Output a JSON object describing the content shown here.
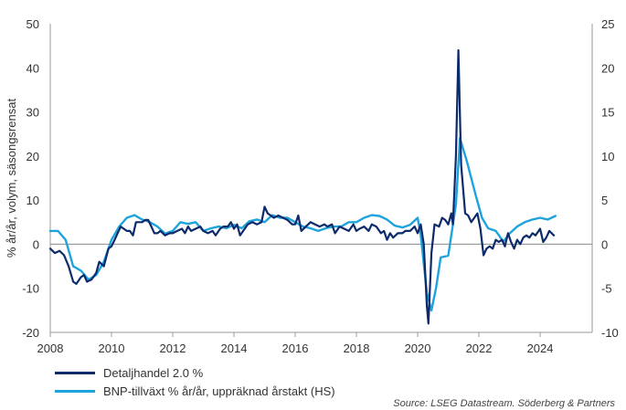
{
  "chart_data": {
    "type": "line",
    "ylabel": "% år/år, volym, säsongsrensat",
    "xlabel": "",
    "x_ticks": [
      "2008",
      "2010",
      "2012",
      "2014",
      "2016",
      "2018",
      "2020",
      "2022",
      "2024"
    ],
    "xlim": [
      2008,
      2025.7
    ],
    "ylim_left": [
      -20,
      50
    ],
    "yticks_left": [
      -20,
      -10,
      0,
      10,
      20,
      30,
      40,
      50
    ],
    "ylim_right": [
      -10,
      25
    ],
    "yticks_right": [
      -10,
      -5,
      0,
      5,
      10,
      15,
      20,
      25
    ],
    "zero_line": true,
    "grid": false,
    "legend_position": "bottom-left",
    "series": [
      {
        "name": "Detaljhandel 2.0 %",
        "axis": "left",
        "color": "#0d2a6b",
        "points": [
          [
            2008.0,
            -1
          ],
          [
            2008.15,
            -2
          ],
          [
            2008.3,
            -1.5
          ],
          [
            2008.45,
            -2.5
          ],
          [
            2008.6,
            -5
          ],
          [
            2008.75,
            -8.5
          ],
          [
            2008.85,
            -9
          ],
          [
            2009.0,
            -7.5
          ],
          [
            2009.1,
            -7
          ],
          [
            2009.2,
            -8.5
          ],
          [
            2009.35,
            -8
          ],
          [
            2009.5,
            -6.5
          ],
          [
            2009.6,
            -4
          ],
          [
            2009.75,
            -5
          ],
          [
            2009.9,
            -1
          ],
          [
            2010.0,
            -0.5
          ],
          [
            2010.1,
            1
          ],
          [
            2010.2,
            2.5
          ],
          [
            2010.3,
            4
          ],
          [
            2010.4,
            3.5
          ],
          [
            2010.5,
            3
          ],
          [
            2010.6,
            3
          ],
          [
            2010.7,
            2
          ],
          [
            2010.8,
            5
          ],
          [
            2010.9,
            5
          ],
          [
            2011.0,
            5
          ],
          [
            2011.1,
            5.5
          ],
          [
            2011.2,
            5.5
          ],
          [
            2011.3,
            4
          ],
          [
            2011.4,
            2.5
          ],
          [
            2011.5,
            2.5
          ],
          [
            2011.6,
            3
          ],
          [
            2011.75,
            2
          ],
          [
            2011.9,
            2.5
          ],
          [
            2012.0,
            2.5
          ],
          [
            2012.15,
            3
          ],
          [
            2012.3,
            3.5
          ],
          [
            2012.4,
            2.5
          ],
          [
            2012.5,
            4
          ],
          [
            2012.6,
            3
          ],
          [
            2012.75,
            3.5
          ],
          [
            2012.9,
            4
          ],
          [
            2013.0,
            3
          ],
          [
            2013.15,
            2.5
          ],
          [
            2013.3,
            3
          ],
          [
            2013.4,
            2
          ],
          [
            2013.55,
            3.5
          ],
          [
            2013.65,
            4
          ],
          [
            2013.8,
            4
          ],
          [
            2013.9,
            5
          ],
          [
            2014.0,
            3.5
          ],
          [
            2014.1,
            4.5
          ],
          [
            2014.2,
            2
          ],
          [
            2014.3,
            3
          ],
          [
            2014.45,
            4.5
          ],
          [
            2014.6,
            5
          ],
          [
            2014.75,
            4.5
          ],
          [
            2014.9,
            5
          ],
          [
            2015.0,
            8.5
          ],
          [
            2015.1,
            7
          ],
          [
            2015.2,
            6.5
          ],
          [
            2015.3,
            6
          ],
          [
            2015.45,
            6.5
          ],
          [
            2015.6,
            6
          ],
          [
            2015.75,
            5.5
          ],
          [
            2015.9,
            4.5
          ],
          [
            2016.0,
            4.5
          ],
          [
            2016.1,
            6.5
          ],
          [
            2016.2,
            3
          ],
          [
            2016.35,
            4
          ],
          [
            2016.5,
            5
          ],
          [
            2016.65,
            4.5
          ],
          [
            2016.8,
            4
          ],
          [
            2016.95,
            4.5
          ],
          [
            2017.05,
            4
          ],
          [
            2017.2,
            4.5
          ],
          [
            2017.3,
            2.5
          ],
          [
            2017.45,
            4
          ],
          [
            2017.6,
            3.5
          ],
          [
            2017.75,
            3
          ],
          [
            2017.9,
            4.5
          ],
          [
            2018.0,
            3
          ],
          [
            2018.1,
            3.5
          ],
          [
            2018.25,
            4
          ],
          [
            2018.4,
            3
          ],
          [
            2018.5,
            4.5
          ],
          [
            2018.65,
            4
          ],
          [
            2018.8,
            2.5
          ],
          [
            2018.9,
            3
          ],
          [
            2019.0,
            1
          ],
          [
            2019.1,
            2.5
          ],
          [
            2019.2,
            1.5
          ],
          [
            2019.35,
            2.5
          ],
          [
            2019.5,
            2.5
          ],
          [
            2019.6,
            3
          ],
          [
            2019.75,
            3
          ],
          [
            2019.9,
            4
          ],
          [
            2020.0,
            2.5
          ],
          [
            2020.1,
            4.5
          ],
          [
            2020.2,
            0
          ],
          [
            2020.3,
            -14
          ],
          [
            2020.35,
            -18
          ],
          [
            2020.45,
            -2
          ],
          [
            2020.55,
            4.5
          ],
          [
            2020.7,
            4
          ],
          [
            2020.8,
            6
          ],
          [
            2020.9,
            5.5
          ],
          [
            2021.0,
            4.5
          ],
          [
            2021.1,
            7
          ],
          [
            2021.15,
            4.5
          ],
          [
            2021.25,
            20
          ],
          [
            2021.33,
            44
          ],
          [
            2021.42,
            18
          ],
          [
            2021.55,
            7
          ],
          [
            2021.65,
            6.5
          ],
          [
            2021.75,
            5
          ],
          [
            2021.85,
            6
          ],
          [
            2021.95,
            7
          ],
          [
            2022.05,
            3.5
          ],
          [
            2022.15,
            -2.5
          ],
          [
            2022.25,
            -1
          ],
          [
            2022.35,
            -0.5
          ],
          [
            2022.45,
            -1
          ],
          [
            2022.55,
            1
          ],
          [
            2022.65,
            0.5
          ],
          [
            2022.75,
            1
          ],
          [
            2022.85,
            -0.5
          ],
          [
            2022.95,
            2.5
          ],
          [
            2023.05,
            0.5
          ],
          [
            2023.15,
            -1
          ],
          [
            2023.25,
            1
          ],
          [
            2023.35,
            0
          ],
          [
            2023.45,
            1.5
          ],
          [
            2023.55,
            2
          ],
          [
            2023.65,
            1.5
          ],
          [
            2023.75,
            2.5
          ],
          [
            2023.85,
            2
          ],
          [
            2023.95,
            3
          ],
          [
            2024.0,
            3.5
          ],
          [
            2024.1,
            0.5
          ],
          [
            2024.2,
            1.5
          ],
          [
            2024.3,
            3
          ],
          [
            2024.45,
            2
          ]
        ]
      },
      {
        "name": "BNP-tillväxt % år/år, uppräknad årstakt (HS)",
        "axis": "right",
        "color": "#1ea4dc",
        "points": [
          [
            2008.0,
            1.5
          ],
          [
            2008.25,
            1.5
          ],
          [
            2008.5,
            0.5
          ],
          [
            2008.75,
            -2.5
          ],
          [
            2009.0,
            -3
          ],
          [
            2009.25,
            -4
          ],
          [
            2009.5,
            -3.5
          ],
          [
            2009.75,
            -2
          ],
          [
            2010.0,
            0.5
          ],
          [
            2010.25,
            2
          ],
          [
            2010.5,
            3
          ],
          [
            2010.75,
            3.3
          ],
          [
            2011.0,
            2.8
          ],
          [
            2011.25,
            2.5
          ],
          [
            2011.5,
            2
          ],
          [
            2011.75,
            1.2
          ],
          [
            2012.0,
            1.5
          ],
          [
            2012.25,
            2.5
          ],
          [
            2012.5,
            2.3
          ],
          [
            2012.75,
            2.5
          ],
          [
            2013.0,
            1.5
          ],
          [
            2013.25,
            1.8
          ],
          [
            2013.5,
            2
          ],
          [
            2013.75,
            1.8
          ],
          [
            2014.0,
            2.2
          ],
          [
            2014.25,
            1.8
          ],
          [
            2014.5,
            2.6
          ],
          [
            2014.75,
            2.8
          ],
          [
            2015.0,
            2.5
          ],
          [
            2015.25,
            3.3
          ],
          [
            2015.5,
            3
          ],
          [
            2015.75,
            3
          ],
          [
            2016.0,
            2.5
          ],
          [
            2016.25,
            2
          ],
          [
            2016.5,
            1.8
          ],
          [
            2016.75,
            1.5
          ],
          [
            2017.0,
            1.8
          ],
          [
            2017.25,
            2
          ],
          [
            2017.5,
            2
          ],
          [
            2017.75,
            2.5
          ],
          [
            2018.0,
            2.5
          ],
          [
            2018.25,
            3
          ],
          [
            2018.5,
            3.3
          ],
          [
            2018.75,
            3.2
          ],
          [
            2019.0,
            2.8
          ],
          [
            2019.25,
            2.1
          ],
          [
            2019.5,
            1.9
          ],
          [
            2019.75,
            2.2
          ],
          [
            2020.0,
            3
          ],
          [
            2020.1,
            1
          ],
          [
            2020.3,
            -5.5
          ],
          [
            2020.45,
            -7.5
          ],
          [
            2020.6,
            -5
          ],
          [
            2020.75,
            -1.5
          ],
          [
            2021.0,
            -1.3
          ],
          [
            2021.25,
            4.5
          ],
          [
            2021.38,
            12
          ],
          [
            2021.6,
            9.5
          ],
          [
            2021.9,
            5.5
          ],
          [
            2022.1,
            3
          ],
          [
            2022.3,
            1.8
          ],
          [
            2022.55,
            1.5
          ],
          [
            2022.8,
            0.3
          ],
          [
            2023.0,
            1.2
          ],
          [
            2023.25,
            2
          ],
          [
            2023.5,
            2.5
          ],
          [
            2023.75,
            2.8
          ],
          [
            2024.0,
            3
          ],
          [
            2024.25,
            2.8
          ],
          [
            2024.5,
            3.2
          ]
        ]
      }
    ]
  },
  "legend": [
    {
      "label": "Detaljhandel 2.0 %",
      "color": "#0d2a6b"
    },
    {
      "label": "BNP-tillväxt % år/år, uppräknad årstakt (HS)",
      "color": "#1ea4dc"
    }
  ],
  "source": "Source: LSEG Datastream. Söderberg & Partners"
}
